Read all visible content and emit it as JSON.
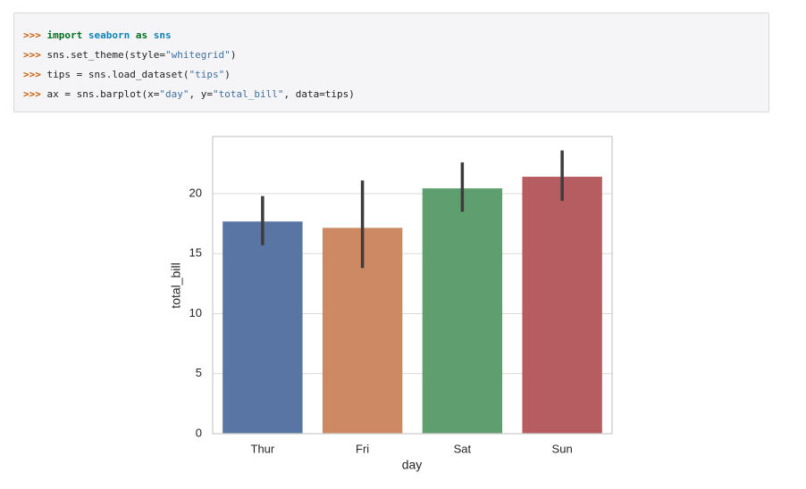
{
  "code": {
    "lines": [
      [
        ">>>",
        "import",
        "seaborn",
        "as",
        "sns"
      ],
      [
        ">>>",
        "sns.set_theme(style=",
        "\"whitegrid\"",
        ")"
      ],
      [
        ">>>",
        "tips = sns.load_dataset(",
        "\"tips\"",
        ")"
      ],
      [
        ">>>",
        "ax = sns.barplot(x=",
        "\"day\"",
        ", y=",
        "\"total_bill\"",
        ", data=tips)"
      ]
    ]
  },
  "chart_data": {
    "type": "bar",
    "x_label": "day",
    "y_label": "total_bill",
    "categories": [
      "Thur",
      "Fri",
      "Sat",
      "Sun"
    ],
    "values": [
      17.68,
      17.15,
      20.44,
      21.41
    ],
    "ci_low": [
      15.7,
      13.8,
      18.5,
      19.4
    ],
    "ci_high": [
      19.8,
      21.1,
      22.6,
      23.6
    ],
    "colors": [
      "#5975a4",
      "#cc8963",
      "#5f9e6e",
      "#b55d60"
    ],
    "ylim": [
      0,
      24.76
    ],
    "yticks": [
      0,
      5,
      10,
      15,
      20
    ],
    "grid": true
  }
}
